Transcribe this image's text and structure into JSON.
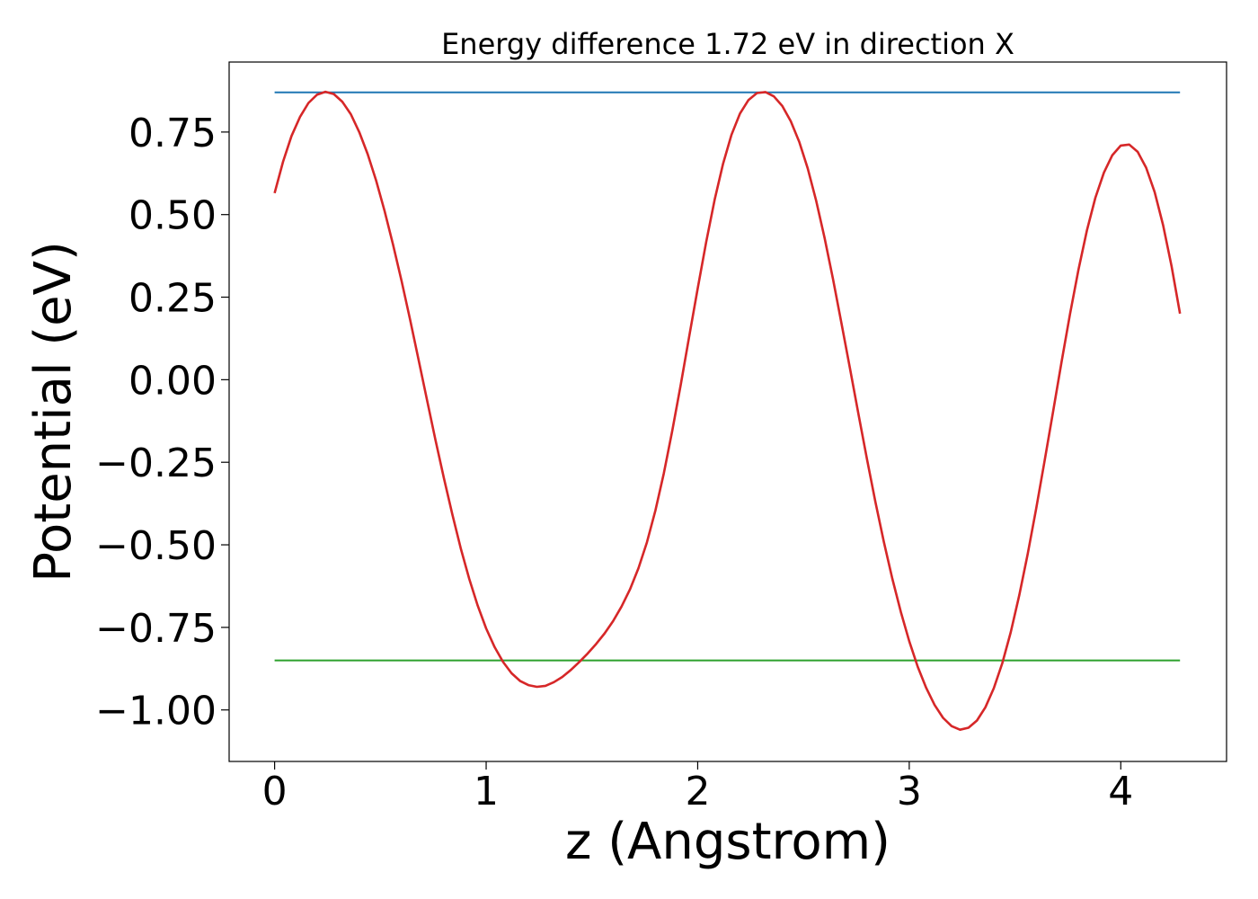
{
  "chart_data": {
    "type": "line",
    "title": "Energy difference 1.72 eV in direction X",
    "xlabel": "z (Angstrom)",
    "ylabel": "Potential (eV)",
    "xlim": [
      -0.215,
      4.5
    ],
    "ylim": [
      -1.156,
      0.962
    ],
    "xticks": [
      0,
      1,
      2,
      3,
      4
    ],
    "xtick_labels": [
      "0",
      "1",
      "2",
      "3",
      "4"
    ],
    "yticks": [
      0.75,
      0.5,
      0.25,
      0.0,
      -0.25,
      -0.5,
      -0.75,
      -1.0
    ],
    "ytick_labels": [
      "0.75",
      "0.50",
      "0.25",
      "0.00",
      "−0.25",
      "−0.50",
      "−0.75",
      "−1.00"
    ],
    "grid": false,
    "legend": "none",
    "series": [
      {
        "color": "#1f77b4",
        "x": [
          0.0,
          4.28
        ],
        "y": [
          0.87,
          0.87
        ]
      },
      {
        "color": "#2ca02c",
        "x": [
          0.0,
          4.28
        ],
        "y": [
          -0.85,
          -0.85
        ]
      },
      {
        "color": "#d62728",
        "x": [
          0.0,
          0.04,
          0.08,
          0.12,
          0.16,
          0.2,
          0.24,
          0.28,
          0.32,
          0.36,
          0.4,
          0.44,
          0.48,
          0.52,
          0.56,
          0.6,
          0.64,
          0.68,
          0.72,
          0.76,
          0.8,
          0.84,
          0.88,
          0.92,
          0.96,
          1.0,
          1.04,
          1.08,
          1.12,
          1.16,
          1.2,
          1.24,
          1.28,
          1.32,
          1.36,
          1.4,
          1.44,
          1.48,
          1.52,
          1.56,
          1.6,
          1.64,
          1.68,
          1.72,
          1.76,
          1.8,
          1.84,
          1.88,
          1.92,
          1.96,
          2.0,
          2.04,
          2.08,
          2.12,
          2.16,
          2.2,
          2.24,
          2.28,
          2.32,
          2.36,
          2.4,
          2.44,
          2.48,
          2.52,
          2.56,
          2.6,
          2.64,
          2.68,
          2.72,
          2.76,
          2.8,
          2.84,
          2.88,
          2.92,
          2.96,
          3.0,
          3.04,
          3.08,
          3.12,
          3.16,
          3.2,
          3.24,
          3.28,
          3.32,
          3.36,
          3.4,
          3.44,
          3.48,
          3.52,
          3.56,
          3.6,
          3.64,
          3.68,
          3.72,
          3.76,
          3.8,
          3.84,
          3.88,
          3.92,
          3.96,
          4.0,
          4.04,
          4.08,
          4.12,
          4.16,
          4.2,
          4.24,
          4.28
        ],
        "y": [
          0.565,
          0.66,
          0.738,
          0.796,
          0.838,
          0.863,
          0.872,
          0.865,
          0.842,
          0.804,
          0.75,
          0.683,
          0.603,
          0.511,
          0.409,
          0.299,
          0.183,
          0.062,
          -0.06,
          -0.181,
          -0.298,
          -0.408,
          -0.511,
          -0.603,
          -0.684,
          -0.753,
          -0.81,
          -0.855,
          -0.889,
          -0.912,
          -0.925,
          -0.93,
          -0.927,
          -0.916,
          -0.9,
          -0.879,
          -0.855,
          -0.829,
          -0.8,
          -0.768,
          -0.731,
          -0.687,
          -0.635,
          -0.571,
          -0.492,
          -0.396,
          -0.283,
          -0.154,
          -0.015,
          0.131,
          0.277,
          0.417,
          0.545,
          0.654,
          0.742,
          0.806,
          0.847,
          0.868,
          0.871,
          0.858,
          0.829,
          0.783,
          0.72,
          0.64,
          0.542,
          0.429,
          0.304,
          0.17,
          0.033,
          -0.105,
          -0.24,
          -0.37,
          -0.491,
          -0.602,
          -0.703,
          -0.792,
          -0.869,
          -0.933,
          -0.985,
          -1.024,
          -1.049,
          -1.06,
          -1.054,
          -1.032,
          -0.992,
          -0.934,
          -0.858,
          -0.764,
          -0.653,
          -0.528,
          -0.391,
          -0.246,
          -0.096,
          0.054,
          0.199,
          0.333,
          0.452,
          0.551,
          0.627,
          0.68,
          0.709,
          0.712,
          0.69,
          0.642,
          0.568,
          0.468,
          0.344,
          0.2
        ]
      }
    ]
  }
}
